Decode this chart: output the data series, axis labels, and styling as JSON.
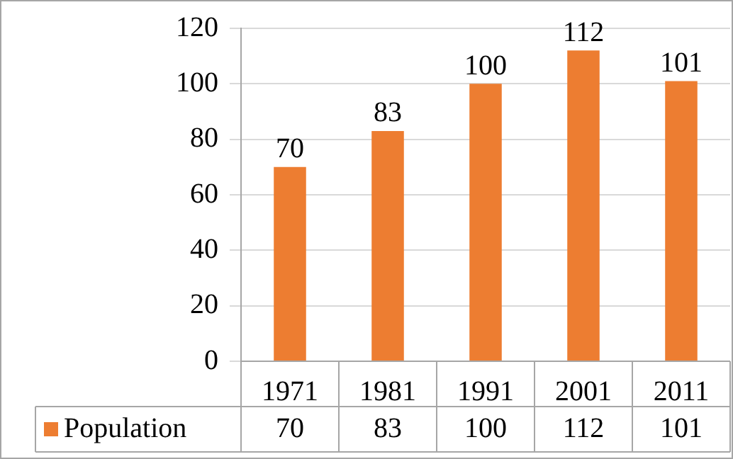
{
  "chart_data": {
    "type": "bar",
    "categories": [
      "1971",
      "1981",
      "1991",
      "2001",
      "2011"
    ],
    "series": [
      {
        "name": "Population",
        "color": "#ed7d31",
        "values": [
          70,
          83,
          100,
          112,
          101
        ],
        "value_labels": [
          "70",
          "83",
          "100",
          "112",
          "101"
        ]
      }
    ],
    "ylim": [
      0,
      120
    ],
    "yticks": [
      0,
      20,
      40,
      60,
      80,
      100,
      120
    ],
    "grid": "y",
    "legend": "bottom",
    "annotations": [
      "70",
      "83",
      "100",
      "112",
      "101"
    ]
  }
}
